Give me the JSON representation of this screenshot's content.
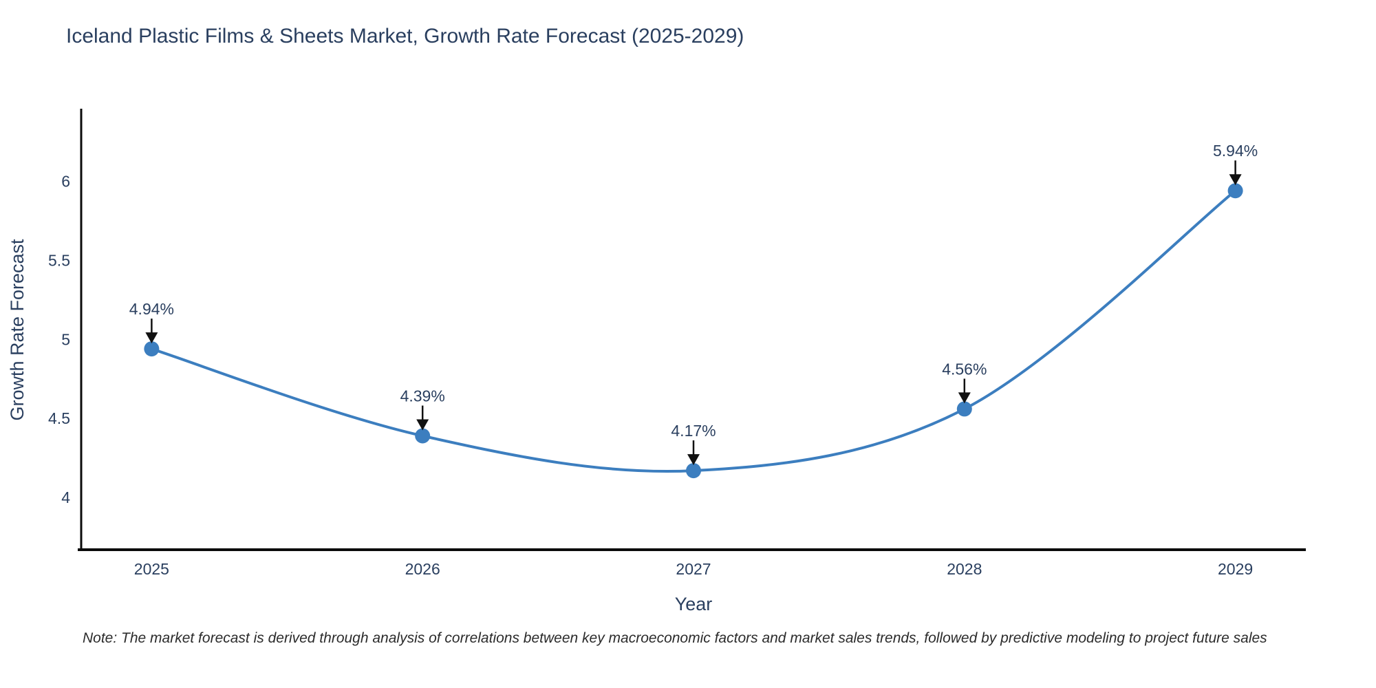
{
  "title": "Iceland Plastic Films & Sheets Market, Growth Rate Forecast (2025-2029)",
  "note": "Note: The market forecast is derived through analysis of correlations between key macroeconomic factors and market sales trends, followed by predictive modeling to project future sales",
  "chart_data": {
    "type": "line",
    "title": "Iceland Plastic Films & Sheets Market, Growth Rate Forecast (2025-2029)",
    "xlabel": "Year",
    "ylabel": "Growth Rate Forecast",
    "x": [
      2025,
      2026,
      2027,
      2028,
      2029
    ],
    "values": [
      4.94,
      4.39,
      4.17,
      4.56,
      5.94
    ],
    "point_labels": [
      "4.94%",
      "4.39%",
      "4.17%",
      "4.56%",
      "5.94%"
    ],
    "xticks": [
      2025,
      2026,
      2027,
      2028,
      2029
    ],
    "yticks": [
      4,
      4.5,
      5,
      5.5,
      6
    ],
    "xlim": [
      2024.74,
      2029.26
    ],
    "ylim": [
      3.67,
      6.45
    ],
    "grid": false,
    "legend": false,
    "line_shape": "spline",
    "colors": {
      "line": "#3C7EBF",
      "marker": "#3C7EBF",
      "axis_line": "#0b0b0b",
      "arrow": "#111111",
      "text": "#2a3f5f"
    }
  }
}
